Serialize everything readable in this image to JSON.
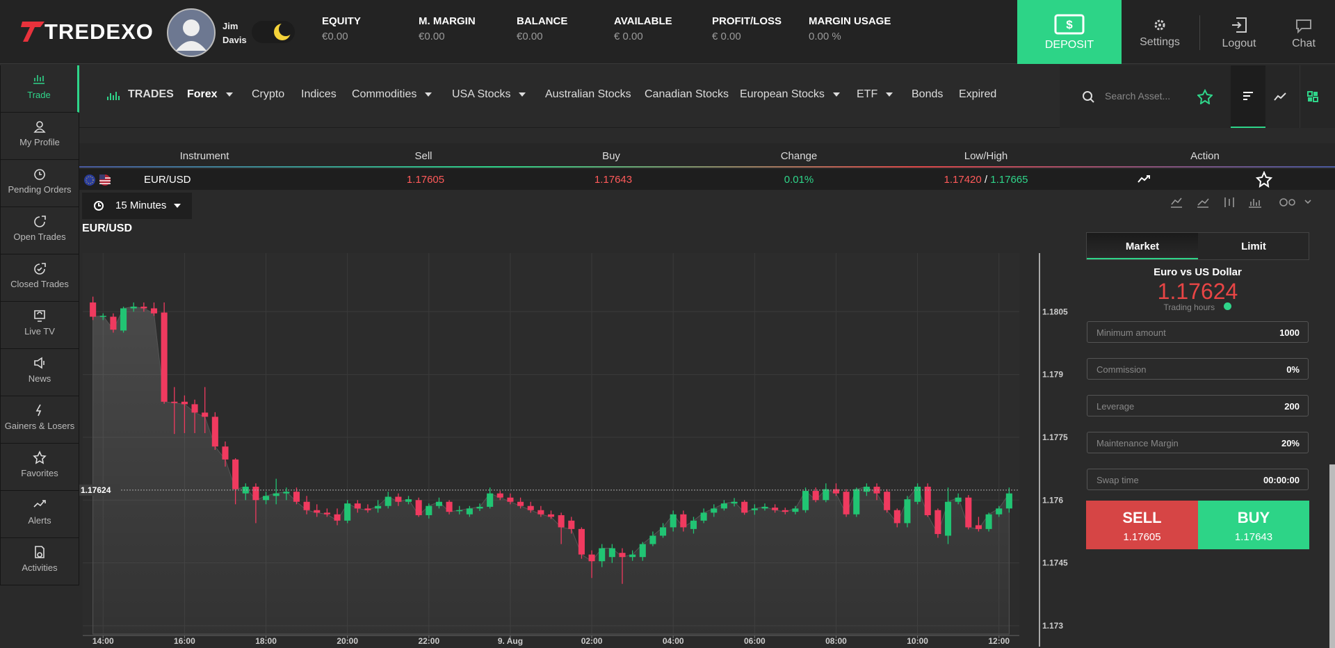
{
  "header": {
    "brand": "TREDEXO",
    "user": {
      "first": "Jim",
      "last": "Davis"
    },
    "stats": [
      {
        "label": "EQUITY",
        "value": "€0.00"
      },
      {
        "label": "M. MARGIN",
        "value": "€0.00"
      },
      {
        "label": "BALANCE",
        "value": "€0.00"
      },
      {
        "label": "AVAILABLE",
        "value": "€ 0.00"
      },
      {
        "label": "PROFIT/LOSS",
        "value": "€ 0.00"
      },
      {
        "label": "MARGIN USAGE",
        "value": "0.00 %"
      }
    ],
    "deposit": "DEPOSIT",
    "settings": "Settings",
    "logout": "Logout",
    "chat": "Chat"
  },
  "sidebar": {
    "items": [
      "Trade",
      "My Profile",
      "Pending Orders",
      "Open Trades",
      "Closed Trades",
      "Live TV",
      "News",
      "Gainers & Losers",
      "Favorites",
      "Alerts",
      "Activities"
    ]
  },
  "nav": {
    "trades": "TRADES",
    "tabs": [
      "Forex",
      "Crypto",
      "Indices",
      "Commodities",
      "USA Stocks",
      "Australian Stocks",
      "Canadian Stocks",
      "European Stocks",
      "ETF",
      "Bonds",
      "Expired"
    ],
    "search_placeholder": "Search Asset..."
  },
  "table": {
    "columns": [
      "Instrument",
      "Sell",
      "Buy",
      "Change",
      "Low/High",
      "Action"
    ],
    "row": {
      "instrument": "EUR/USD",
      "sell": "1.17605",
      "buy": "1.17643",
      "change": "0.01%",
      "low": "1.17420",
      "high": "1.17665"
    }
  },
  "chart_controls": {
    "timeframe": "15 Minutes"
  },
  "chart_data": {
    "type": "candlestick",
    "title": "EUR/USD",
    "up_color": "#21c473",
    "down_color": "#f03a5f",
    "grid": true,
    "current_price": 1.17624,
    "x": [
      13.75,
      14,
      14.25,
      14.5,
      14.75,
      15,
      15.25,
      15.5,
      15.75,
      16,
      16.25,
      16.5,
      16.75,
      17,
      17.25,
      17.5,
      17.75,
      18,
      18.25,
      18.5,
      18.75,
      19,
      19.25,
      19.5,
      19.75,
      20,
      20.25,
      20.5,
      20.75,
      21,
      21.25,
      21.5,
      21.75,
      22,
      22.25,
      22.5,
      22.75,
      23,
      23.25,
      23.5,
      23.75,
      24,
      24.25,
      24.5,
      24.75,
      25,
      25.25,
      25.5,
      25.75,
      26,
      26.25,
      26.5,
      26.75,
      27,
      27.25,
      27.5,
      27.75,
      28,
      28.25,
      28.5,
      28.75,
      29,
      29.25,
      29.5,
      29.75,
      30,
      30.25,
      30.5,
      30.75,
      31,
      31.25,
      31.5,
      31.75,
      32,
      32.25,
      32.5,
      32.75,
      33,
      33.25,
      33.5,
      33.75,
      34,
      34.25,
      34.5,
      34.75,
      35,
      35.25,
      35.5,
      35.75,
      36,
      36.25
    ],
    "open": [
      1.18072,
      1.18038,
      1.18038,
      1.18005,
      1.18058,
      1.18062,
      1.18058,
      1.18048,
      1.17835,
      1.17835,
      1.17829,
      1.17809,
      1.17799,
      1.17728,
      1.17697,
      1.17616,
      1.17632,
      1.176,
      1.1761,
      1.17616,
      1.1762,
      1.17596,
      1.17576,
      1.1757,
      1.17566,
      1.17551,
      1.17592,
      1.1758,
      1.1758,
      1.17586,
      1.17608,
      1.17596,
      1.176,
      1.17564,
      1.17586,
      1.17596,
      1.17576,
      1.17566,
      1.1758,
      1.17584,
      1.17616,
      1.17606,
      1.17596,
      1.17586,
      1.17576,
      1.17566,
      1.17564,
      1.17551,
      1.17531,
      1.1747,
      1.17454,
      1.17464,
      1.17474,
      1.17464,
      1.17464,
      1.17495,
      1.17515,
      1.17535,
      1.17566,
      1.17531,
      1.17551,
      1.1757,
      1.1758,
      1.17592,
      1.17596,
      1.17576,
      1.1758,
      1.17582,
      1.17576,
      1.17572,
      1.17576,
      1.17622,
      1.176,
      1.17626,
      1.1762,
      1.17566,
      1.1762,
      1.17632,
      1.1762,
      1.17576,
      1.17545,
      1.17596,
      1.17632,
      1.17576,
      1.17515,
      1.17596,
      1.17606,
      1.1754,
      1.17531,
      1.17566,
      1.1758
    ],
    "high": [
      1.18086,
      1.18046,
      1.18046,
      1.18062,
      1.18072,
      1.18072,
      1.18072,
      1.18072,
      1.1787,
      1.1785,
      1.1784,
      1.1787,
      1.1781,
      1.1774,
      1.177,
      1.1764,
      1.1764,
      1.1762,
      1.17651,
      1.1763,
      1.1763,
      1.1761,
      1.1759,
      1.1758,
      1.1758,
      1.176,
      1.176,
      1.1759,
      1.176,
      1.1762,
      1.17616,
      1.1761,
      1.17606,
      1.17592,
      1.17606,
      1.176,
      1.17586,
      1.17586,
      1.17592,
      1.1763,
      1.17622,
      1.17616,
      1.17606,
      1.17596,
      1.17586,
      1.17575,
      1.1757,
      1.1756,
      1.17535,
      1.1748,
      1.17495,
      1.17495,
      1.17485,
      1.1748,
      1.175,
      1.17525,
      1.17545,
      1.17575,
      1.17575,
      1.1756,
      1.1758,
      1.1759,
      1.176,
      1.17605,
      1.176,
      1.1759,
      1.17592,
      1.1759,
      1.17582,
      1.17586,
      1.1763,
      1.1763,
      1.1764,
      1.1764,
      1.17626,
      1.1763,
      1.1764,
      1.1764,
      1.17626,
      1.1758,
      1.1761,
      1.1764,
      1.1764,
      1.1758,
      1.1763,
      1.17616,
      1.17612,
      1.1756,
      1.1757,
      1.17586,
      1.1763
    ],
    "low": [
      1.1803,
      1.1803,
      1.18,
      1.18,
      1.1805,
      1.1805,
      1.1804,
      1.1783,
      1.17758,
      1.1776,
      1.1776,
      1.1776,
      1.1772,
      1.1768,
      1.1759,
      1.176,
      1.17545,
      1.1759,
      1.1759,
      1.176,
      1.1759,
      1.17566,
      1.1756,
      1.1756,
      1.1754,
      1.17545,
      1.1757,
      1.1757,
      1.1757,
      1.1758,
      1.17586,
      1.1759,
      1.1756,
      1.17556,
      1.1758,
      1.17566,
      1.17566,
      1.1756,
      1.17574,
      1.1758,
      1.176,
      1.1759,
      1.1758,
      1.1757,
      1.1756,
      1.17555,
      1.17495,
      1.1752,
      1.1746,
      1.17414,
      1.1744,
      1.1745,
      1.174,
      1.17455,
      1.17455,
      1.1749,
      1.1751,
      1.17525,
      1.17525,
      1.1752,
      1.17545,
      1.1756,
      1.17575,
      1.17585,
      1.17565,
      1.17565,
      1.17575,
      1.1757,
      1.17566,
      1.17566,
      1.1757,
      1.17595,
      1.17595,
      1.1761,
      1.1756,
      1.1756,
      1.1761,
      1.176,
      1.1757,
      1.17535,
      1.17535,
      1.1759,
      1.1756,
      1.1751,
      1.17495,
      1.1759,
      1.1753,
      1.17525,
      1.17525,
      1.1756,
      1.1757
    ],
    "close": [
      1.18038,
      1.1804,
      1.18007,
      1.18058,
      1.18062,
      1.18058,
      1.18046,
      1.17835,
      1.17832,
      1.17829,
      1.17809,
      1.17799,
      1.17728,
      1.17697,
      1.17626,
      1.17632,
      1.176,
      1.1761,
      1.17616,
      1.1762,
      1.17596,
      1.17576,
      1.1757,
      1.17566,
      1.17551,
      1.17592,
      1.1758,
      1.17576,
      1.17586,
      1.17608,
      1.17596,
      1.17602,
      1.17564,
      1.17586,
      1.17596,
      1.17572,
      1.17576,
      1.1758,
      1.17584,
      1.17616,
      1.17606,
      1.17596,
      1.17586,
      1.17576,
      1.17566,
      1.1756,
      1.17535,
      1.17531,
      1.1747,
      1.17454,
      1.17485,
      1.17485,
      1.17464,
      1.1747,
      1.17495,
      1.17515,
      1.17535,
      1.17566,
      1.17535,
      1.17551,
      1.1757,
      1.1758,
      1.17592,
      1.17596,
      1.1757,
      1.1758,
      1.17584,
      1.17576,
      1.17572,
      1.1758,
      1.17622,
      1.176,
      1.17626,
      1.17616,
      1.17566,
      1.17626,
      1.17632,
      1.17616,
      1.17576,
      1.17545,
      1.17602,
      1.17632,
      1.17564,
      1.17519,
      1.17596,
      1.17606,
      1.17535,
      1.17531,
      1.17566,
      1.1758,
      1.17616
    ],
    "xlim": [
      13.5,
      36.5
    ],
    "xticks": [
      {
        "value": 14,
        "label": "14:00"
      },
      {
        "value": 16,
        "label": "16:00"
      },
      {
        "value": 18,
        "label": "18:00"
      },
      {
        "value": 20,
        "label": "20:00"
      },
      {
        "value": 22,
        "label": "22:00"
      },
      {
        "value": 24,
        "label": "9. Aug"
      },
      {
        "value": 26,
        "label": "02:00"
      },
      {
        "value": 28,
        "label": "04:00"
      },
      {
        "value": 30,
        "label": "06:00"
      },
      {
        "value": 32,
        "label": "08:00"
      },
      {
        "value": 34,
        "label": "10:00"
      },
      {
        "value": 36,
        "label": "12:00"
      }
    ],
    "ylim": [
      1.1728,
      1.1819
    ],
    "yticks": [
      1.173,
      1.1745,
      1.176,
      1.1775,
      1.179,
      1.1805
    ]
  },
  "order_panel": {
    "tabs": [
      "Market",
      "Limit"
    ],
    "title": "Euro vs US Dollar",
    "price": "1.17624",
    "trading_hours": "Trading hours",
    "fields": [
      {
        "label": "Minimum amount",
        "value": "1000"
      },
      {
        "label": "Commission",
        "value": "0%"
      },
      {
        "label": "Leverage",
        "value": "200"
      },
      {
        "label": "Maintenance Margin",
        "value": "20%"
      },
      {
        "label": "Swap time",
        "value": "00:00:00"
      }
    ],
    "sell": {
      "label": "SELL",
      "price": "1.17605"
    },
    "buy": {
      "label": "BUY",
      "price": "1.17643"
    }
  }
}
